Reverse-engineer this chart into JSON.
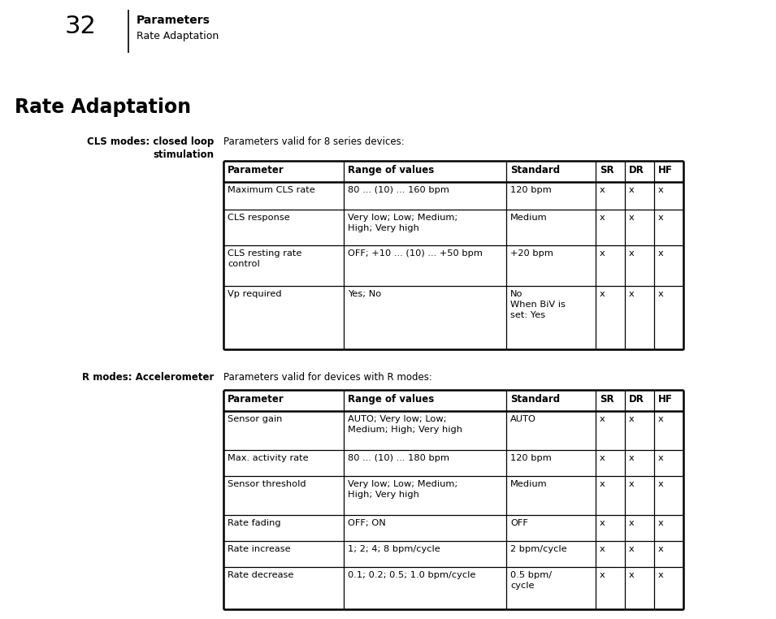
{
  "page_number": "32",
  "header_title": "Parameters",
  "header_subtitle": "Rate Adaptation",
  "section_title": "Rate Adaptation",
  "cls_label_line1": "CLS modes: closed loop",
  "cls_label_line2": "stimulation",
  "cls_intro": "Parameters valid for 8 series devices:",
  "r_label": "R modes: Accelerometer",
  "r_intro": "Parameters valid for devices with R modes:",
  "table_headers": [
    "Parameter",
    "Range of values",
    "Standard",
    "SR",
    "DR",
    "HF"
  ],
  "cls_rows": [
    [
      "Maximum CLS rate",
      "80 ... (10) ... 160 bpm",
      "120 bpm",
      "x",
      "x",
      "x"
    ],
    [
      "CLS response",
      "Very low; Low; Medium;\nHigh; Very high",
      "Medium",
      "x",
      "x",
      "x"
    ],
    [
      "CLS resting rate\ncontrol",
      "OFF; +10 ... (10) ... +50 bpm",
      "+20 bpm",
      "x",
      "x",
      "x"
    ],
    [
      "Vp required",
      "Yes; No",
      "No\nWhen BiV is\nset: Yes",
      "x",
      "x",
      "x"
    ]
  ],
  "r_rows": [
    [
      "Sensor gain",
      "AUTO; Very low; Low;\nMedium; High; Very high",
      "AUTO",
      "x",
      "x",
      "x"
    ],
    [
      "Max. activity rate",
      "80 ... (10) ... 180 bpm",
      "120 bpm",
      "x",
      "x",
      "x"
    ],
    [
      "Sensor threshold",
      "Very low; Low; Medium;\nHigh; Very high",
      "Medium",
      "x",
      "x",
      "x"
    ],
    [
      "Rate fading",
      "OFF; ON",
      "OFF",
      "x",
      "x",
      "x"
    ],
    [
      "Rate increase",
      "1; 2; 4; 8 bpm/cycle",
      "2 bpm/cycle",
      "x",
      "x",
      "x"
    ],
    [
      "Rate decrease",
      "0.1; 0.2; 0.5; 1.0 bpm/cycle",
      "0.5 bpm/\ncycle",
      "x",
      "x",
      "x"
    ]
  ],
  "bg_color": "#ffffff",
  "text_color": "#000000"
}
